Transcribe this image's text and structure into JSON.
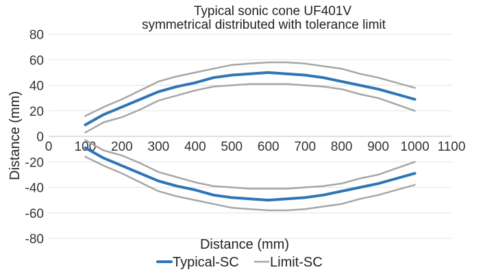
{
  "chart_data": {
    "type": "line",
    "title": "Typical sonic cone UF401V",
    "subtitle": "symmetrical distributed with tolerance limit",
    "xlabel": "Distance (mm)",
    "ylabel": "Distance (mm)",
    "xlim": [
      0,
      1100
    ],
    "ylim": [
      -80,
      80
    ],
    "x_ticks": [
      0,
      100,
      200,
      300,
      400,
      500,
      600,
      700,
      800,
      900,
      1000,
      1100
    ],
    "y_ticks": [
      80,
      60,
      40,
      20,
      0,
      -20,
      -40,
      -60,
      -80
    ],
    "grid": "horizontal",
    "legend_position": "bottom",
    "legend": [
      {
        "label": "Typical-SC",
        "color": "#2e75b6"
      },
      {
        "label": "Limit-SC",
        "color": "#a6a6a6"
      }
    ],
    "series": [
      {
        "name": "Typical-SC",
        "color": "#2e75b6",
        "x": [
          100,
          150,
          200,
          250,
          300,
          350,
          400,
          450,
          500,
          550,
          600,
          650,
          700,
          750,
          800,
          850,
          900,
          950,
          1000
        ],
        "y": [
          9,
          17,
          23,
          29,
          35,
          39,
          42,
          46,
          48,
          49,
          50,
          49,
          48,
          46,
          43,
          40,
          37,
          33,
          29
        ]
      },
      {
        "name": "Typical-SC",
        "color": "#2e75b6",
        "x": [
          100,
          150,
          200,
          250,
          300,
          350,
          400,
          450,
          500,
          550,
          600,
          650,
          700,
          750,
          800,
          850,
          900,
          950,
          1000
        ],
        "y": [
          -9,
          -17,
          -23,
          -29,
          -35,
          -39,
          -42,
          -46,
          -48,
          -49,
          -50,
          -49,
          -48,
          -46,
          -43,
          -40,
          -37,
          -33,
          -29
        ]
      },
      {
        "name": "Limit-SC",
        "color": "#a6a6a6",
        "x": [
          100,
          150,
          200,
          250,
          300,
          350,
          400,
          450,
          500,
          550,
          600,
          650,
          700,
          750,
          800,
          850,
          900,
          950,
          1000
        ],
        "y": [
          16,
          23,
          29,
          36,
          43,
          47,
          50,
          53,
          56,
          57,
          58,
          58,
          57,
          55,
          53,
          49,
          46,
          42,
          38
        ]
      },
      {
        "name": "Limit-SC",
        "color": "#a6a6a6",
        "x": [
          100,
          150,
          200,
          250,
          300,
          350,
          400,
          450,
          500,
          550,
          600,
          650,
          700,
          750,
          800,
          850,
          900,
          950,
          1000
        ],
        "y": [
          3,
          11,
          15,
          21,
          28,
          32,
          36,
          39,
          40,
          41,
          41,
          41,
          40,
          39,
          37,
          33,
          30,
          25,
          20
        ]
      },
      {
        "name": "Limit-SC",
        "color": "#a6a6a6",
        "x": [
          100,
          150,
          200,
          250,
          300,
          350,
          400,
          450,
          500,
          550,
          600,
          650,
          700,
          750,
          800,
          850,
          900,
          950,
          1000
        ],
        "y": [
          -3,
          -11,
          -15,
          -21,
          -28,
          -32,
          -36,
          -39,
          -40,
          -41,
          -41,
          -41,
          -40,
          -39,
          -37,
          -33,
          -30,
          -25,
          -20
        ]
      },
      {
        "name": "Limit-SC",
        "color": "#a6a6a6",
        "x": [
          100,
          150,
          200,
          250,
          300,
          350,
          400,
          450,
          500,
          550,
          600,
          650,
          700,
          750,
          800,
          850,
          900,
          950,
          1000
        ],
        "y": [
          -16,
          -23,
          -29,
          -36,
          -43,
          -47,
          -50,
          -53,
          -56,
          -57,
          -58,
          -58,
          -57,
          -55,
          -53,
          -49,
          -46,
          -42,
          -38
        ]
      }
    ]
  }
}
